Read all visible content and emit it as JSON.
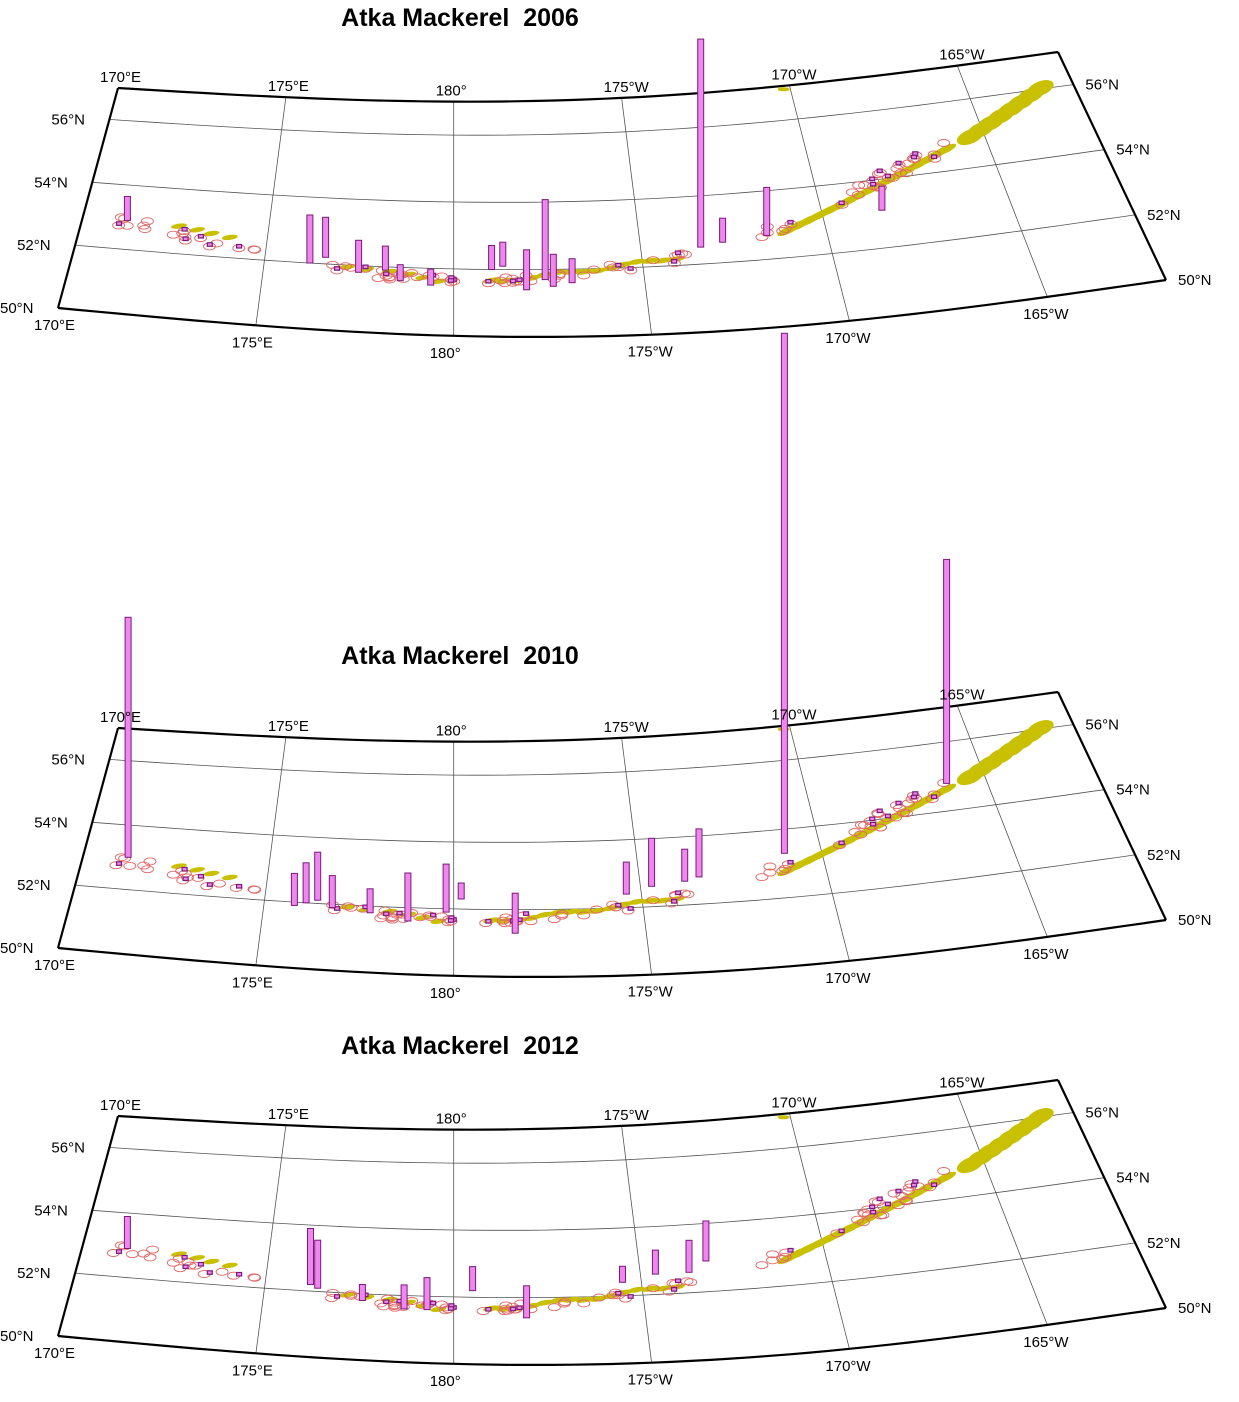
{
  "figure": {
    "panels": [
      {
        "title": "Atka Mackerel  2006"
      },
      {
        "title": "Atka Mackerel  2010"
      },
      {
        "title": "Atka Mackerel  2012"
      }
    ],
    "lon_labels_top": [
      "170°E",
      "175°E",
      "180°",
      "175°W",
      "170°W",
      "165°W"
    ],
    "lon_labels_bottom": [
      "170°E",
      "175°E",
      "180°",
      "175°W",
      "170°W",
      "165°W"
    ],
    "lat_labels_left": [
      "56°N",
      "54°N",
      "52°N",
      "50°N"
    ],
    "lat_labels_right": [
      "56°N",
      "54°N",
      "52°N",
      "50°N"
    ]
  },
  "colors": {
    "land": "#c8c000",
    "bar_fill": "#ee88ee",
    "bar_stroke": "#7a1a7a",
    "haul_circle": "#e06a6a",
    "grid": "#555555",
    "frame": "#000000"
  },
  "map_data": {
    "projection": "oblique conic",
    "lon_range": [
      "170°E",
      "162°W"
    ],
    "lat_range": [
      "50°N",
      "57°N"
    ],
    "note_none": "",
    "panels": [
      {
        "bars": [
          [
            171.2,
            52.9,
            3
          ],
          [
            176.2,
            52.0,
            6
          ],
          [
            176.6,
            52.2,
            5
          ],
          [
            177.5,
            51.8,
            4
          ],
          [
            178.2,
            51.9,
            3
          ],
          [
            178.6,
            51.6,
            2
          ],
          [
            179.4,
            51.5,
            2
          ],
          [
            181.0,
            52.0,
            3
          ],
          [
            181.3,
            52.1,
            3
          ],
          [
            181.9,
            51.4,
            5
          ],
          [
            182.4,
            51.7,
            10
          ],
          [
            182.6,
            51.5,
            4
          ],
          [
            183.1,
            51.6,
            3
          ],
          [
            186.6,
            52.5,
            26
          ],
          [
            187.2,
            52.6,
            3
          ],
          [
            188.4,
            52.7,
            6
          ],
          [
            191.6,
            53.1,
            3
          ]
        ]
      },
      {
        "bars": [
          [
            171.2,
            53.0,
            30
          ],
          [
            175.8,
            51.9,
            4
          ],
          [
            176.1,
            52.0,
            5
          ],
          [
            176.4,
            52.1,
            6
          ],
          [
            176.8,
            51.9,
            4
          ],
          [
            177.8,
            51.8,
            3
          ],
          [
            178.8,
            51.6,
            6
          ],
          [
            179.8,
            51.9,
            6
          ],
          [
            180.2,
            52.3,
            2
          ],
          [
            181.6,
            51.3,
            5
          ],
          [
            184.6,
            52.4,
            4
          ],
          [
            185.3,
            52.6,
            6
          ],
          [
            186.2,
            52.7,
            4
          ],
          [
            186.6,
            52.8,
            6
          ],
          [
            189.0,
            53.3,
            65
          ],
          [
            193.9,
            54.8,
            28
          ]
        ]
      },
      {
        "bars": [
          [
            171.2,
            52.9,
            4
          ],
          [
            176.2,
            52.2,
            7
          ],
          [
            176.4,
            52.1,
            6
          ],
          [
            177.6,
            51.8,
            2
          ],
          [
            178.7,
            51.6,
            3
          ],
          [
            179.3,
            51.6,
            4
          ],
          [
            180.5,
            52.2,
            3
          ],
          [
            181.9,
            51.4,
            4
          ],
          [
            184.5,
            52.4,
            2
          ],
          [
            185.4,
            52.6,
            3
          ],
          [
            186.3,
            52.6,
            4
          ],
          [
            186.8,
            52.9,
            5
          ]
        ]
      }
    ]
  }
}
